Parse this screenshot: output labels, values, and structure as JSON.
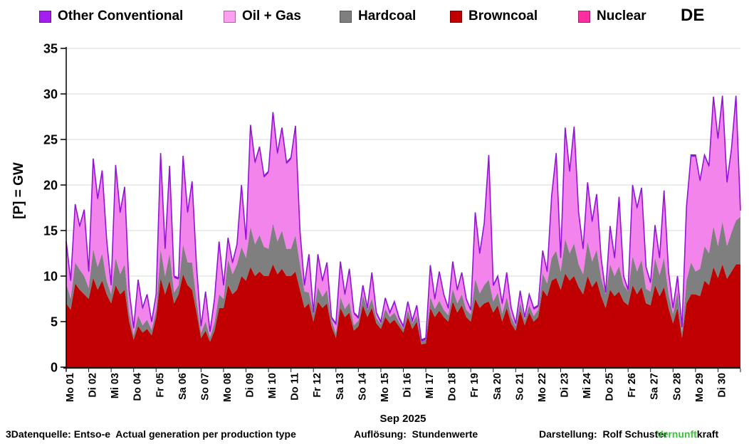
{
  "legend": {
    "items": [
      {
        "label": "Other Conventional",
        "color": "#A21FEE"
      },
      {
        "label": "Oil + Gas",
        "color": "#FC9FF3"
      },
      {
        "label": "Hardcoal",
        "color": "#7F7F7F"
      },
      {
        "label": "Browncoal",
        "color": "#C00000"
      },
      {
        "label": "Nuclear",
        "color": "#FF2E9E"
      }
    ],
    "region_label": "DE"
  },
  "y_axis": {
    "title": "[P] = GW",
    "ticks": [
      0,
      5,
      10,
      15,
      20,
      25,
      30,
      35
    ],
    "unit": "GW"
  },
  "x_axis": {
    "title": "Sep 2025",
    "labels": [
      "Mo 01",
      "Di 02",
      "Mi 03",
      "Do 04",
      "Fr 05",
      "Sa 06",
      "So 07",
      "Mo 08",
      "Di 09",
      "Mi 10",
      "Do 11",
      "Fr 12",
      "Sa 13",
      "So 14",
      "Mo 15",
      "Di 16",
      "Mi 17",
      "Do 18",
      "Fr 19",
      "Sa 20",
      "So 21",
      "Mo 22",
      "Di 23",
      "Mi 24",
      "Do 25",
      "Fr 26",
      "Sa 27",
      "So 28",
      "Mo 29",
      "Di 30"
    ]
  },
  "footer": {
    "left": "3Datenquelle: Entso-e  Actual generation per production type",
    "middle": "Auflösung:  Stundenwerte",
    "right": "Darstellung:  Rolf Schuster",
    "brand_green": "Vernunft",
    "brand_black": "kraft",
    "brand_green_color": "#3DBE3D"
  },
  "chart_data": {
    "type": "area",
    "stacked": true,
    "title": "",
    "ylabel": "[P] = GW",
    "ylim": [
      0,
      35
    ],
    "grid": "horizontal",
    "legend_position": "top",
    "days": 30,
    "samples_per_day": 5,
    "x_unit": "days of Sep 2025 (hourly source data, sampled ~every 4.8 h)",
    "stack_order": [
      "Browncoal",
      "Hardcoal",
      "Oil + Gas",
      "Other Conventional",
      "Nuclear"
    ],
    "series": [
      {
        "name": "Browncoal",
        "color": "#C00000",
        "values": [
          7.0,
          6.3,
          9.2,
          8.5,
          8.0,
          7.5,
          9.8,
          8.5,
          9.5,
          8.0,
          7.0,
          9.0,
          8.0,
          8.5,
          5.0,
          3.0,
          4.5,
          3.8,
          4.2,
          3.5,
          5.5,
          9.8,
          8.0,
          9.5,
          7.0,
          8.0,
          10.2,
          9.0,
          8.5,
          6.0,
          3.2,
          4.0,
          2.8,
          4.0,
          6.5,
          6.5,
          9.0,
          8.0,
          8.5,
          10.0,
          9.5,
          11.0,
          10.0,
          10.5,
          10.0,
          10.0,
          11.3,
          10.2,
          10.8,
          10.0,
          10.0,
          10.5,
          8.5,
          6.5,
          7.0,
          5.0,
          7.2,
          6.5,
          7.0,
          4.5,
          3.2,
          6.5,
          5.5,
          6.0,
          4.0,
          4.5,
          6.8,
          5.5,
          6.5,
          4.8,
          4.2,
          5.5,
          4.8,
          5.2,
          4.5,
          3.8,
          5.5,
          4.2,
          5.0,
          2.5,
          2.6,
          6.5,
          5.5,
          6.2,
          5.5,
          5.0,
          7.2,
          6.0,
          6.8,
          5.5,
          5.0,
          7.5,
          6.5,
          7.0,
          7.2,
          6.0,
          6.8,
          5.0,
          6.5,
          4.8,
          4.0,
          6.2,
          4.6,
          6.0,
          5.0,
          5.5,
          8.5,
          7.8,
          9.5,
          9.8,
          8.5,
          10.3,
          9.5,
          10.0,
          8.8,
          8.0,
          10.0,
          8.8,
          9.5,
          7.8,
          6.5,
          8.5,
          7.8,
          8.3,
          7.2,
          6.8,
          9.0,
          8.0,
          8.8,
          7.0,
          6.8,
          9.0,
          7.8,
          8.8,
          6.5,
          4.8,
          6.5,
          3.2,
          7.0,
          8.0,
          8.0,
          7.8,
          9.5,
          9.0,
          11.0,
          9.8,
          11.3,
          9.7,
          10.5,
          11.3,
          11.3
        ]
      },
      {
        "name": "Hardcoal",
        "color": "#7F7F7F",
        "values": [
          2.2,
          1.2,
          2.3,
          2.2,
          2.0,
          1.2,
          3.2,
          2.5,
          3.0,
          1.5,
          1.0,
          3.0,
          2.2,
          2.8,
          1.0,
          0.5,
          1.2,
          0.8,
          1.0,
          0.6,
          0.8,
          3.2,
          2.0,
          3.0,
          1.2,
          1.0,
          3.3,
          2.5,
          3.0,
          1.2,
          0.6,
          1.0,
          0.5,
          0.9,
          1.5,
          1.0,
          2.8,
          2.2,
          2.8,
          3.2,
          2.5,
          4.4,
          3.5,
          4.0,
          3.2,
          3.0,
          4.5,
          3.6,
          4.2,
          3.0,
          3.0,
          4.0,
          2.8,
          1.8,
          1.2,
          0.8,
          1.6,
          1.2,
          1.5,
          0.7,
          0.5,
          1.2,
          0.9,
          1.1,
          0.6,
          0.6,
          1.1,
          0.8,
          1.0,
          0.6,
          0.5,
          0.9,
          0.7,
          0.8,
          0.5,
          0.4,
          0.8,
          0.6,
          0.7,
          0.3,
          0.4,
          1.2,
          0.9,
          1.1,
          0.8,
          0.7,
          1.4,
          1.0,
          1.2,
          0.8,
          0.8,
          2.2,
          1.6,
          2.0,
          2.4,
          1.2,
          1.4,
          0.9,
          1.2,
          0.7,
          0.5,
          0.9,
          0.6,
          0.8,
          0.6,
          0.8,
          1.8,
          1.4,
          2.5,
          3.0,
          2.0,
          3.8,
          3.0,
          3.6,
          2.5,
          2.2,
          3.8,
          2.8,
          3.4,
          2.0,
          1.5,
          2.8,
          2.2,
          2.8,
          1.8,
          1.5,
          3.2,
          2.5,
          3.0,
          1.6,
          1.5,
          3.0,
          2.3,
          3.2,
          1.5,
          1.0,
          1.8,
          0.6,
          2.5,
          3.5,
          2.5,
          3.0,
          3.8,
          3.5,
          4.5,
          3.5,
          4.7,
          3.6,
          4.3,
          4.8,
          5.2
        ]
      },
      {
        "name": "Oil + Gas",
        "color": "#F384EB",
        "values": [
          4.4,
          1.8,
          6.2,
          4.6,
          7.1,
          1.6,
          9.7,
          7.3,
          8.9,
          4.3,
          0.8,
          10.0,
          6.6,
          8.3,
          2.3,
          0.6,
          3.7,
          1.7,
          2.6,
          0.7,
          1.5,
          10.3,
          2.8,
          9.4,
          1.6,
          0.6,
          9.5,
          5.3,
          8.7,
          3.6,
          0.5,
          3.1,
          0.4,
          2.4,
          5.6,
          1.3,
          2.2,
          1.1,
          2.0,
          6.6,
          1.8,
          11.0,
          8.8,
          9.5,
          7.6,
          8.3,
          12.0,
          9.5,
          11.1,
          9.3,
          9.8,
          11.8,
          3.5,
          0.5,
          4.0,
          0.0,
          3.4,
          1.6,
          2.8,
          0.1,
          0.9,
          3.7,
          1.4,
          3.5,
          1.2,
          0.2,
          0.9,
          0.0,
          2.7,
          0.4,
          0.1,
          1.0,
          0.3,
          1.0,
          0.3,
          0.1,
          0.7,
          0.1,
          0.9,
          0.0,
          0.0,
          3.3,
          0.9,
          3.0,
          1.5,
          0.6,
          2.8,
          1.3,
          2.2,
          1.0,
          0.3,
          7.1,
          4.2,
          6.6,
          13.5,
          1.6,
          1.6,
          0.9,
          2.5,
          0.8,
          0.1,
          1.1,
          0.1,
          1.0,
          0.7,
          0.3,
          2.3,
          1.1,
          6.6,
          10.5,
          1.3,
          12.0,
          8.8,
          12.6,
          5.5,
          2.6,
          6.3,
          4.2,
          5.9,
          2.0,
          0.0,
          4.0,
          1.8,
          7.4,
          0.8,
          0.0,
          7.6,
          6.8,
          7.7,
          2.2,
          0.8,
          3.4,
          1.7,
          7.2,
          2.3,
          0.5,
          1.5,
          0.4,
          7.9,
          11.6,
          12.6,
          9.5,
          9.8,
          9.4,
          14.0,
          11.6,
          13.6,
          6.8,
          9.0,
          13.5,
          0.5
        ]
      },
      {
        "name": "Other Conventional",
        "color": "#9313D6",
        "constant_value": 0.2
      },
      {
        "name": "Nuclear",
        "color": "#FF2E9E",
        "constant_value": 0.0
      }
    ]
  }
}
